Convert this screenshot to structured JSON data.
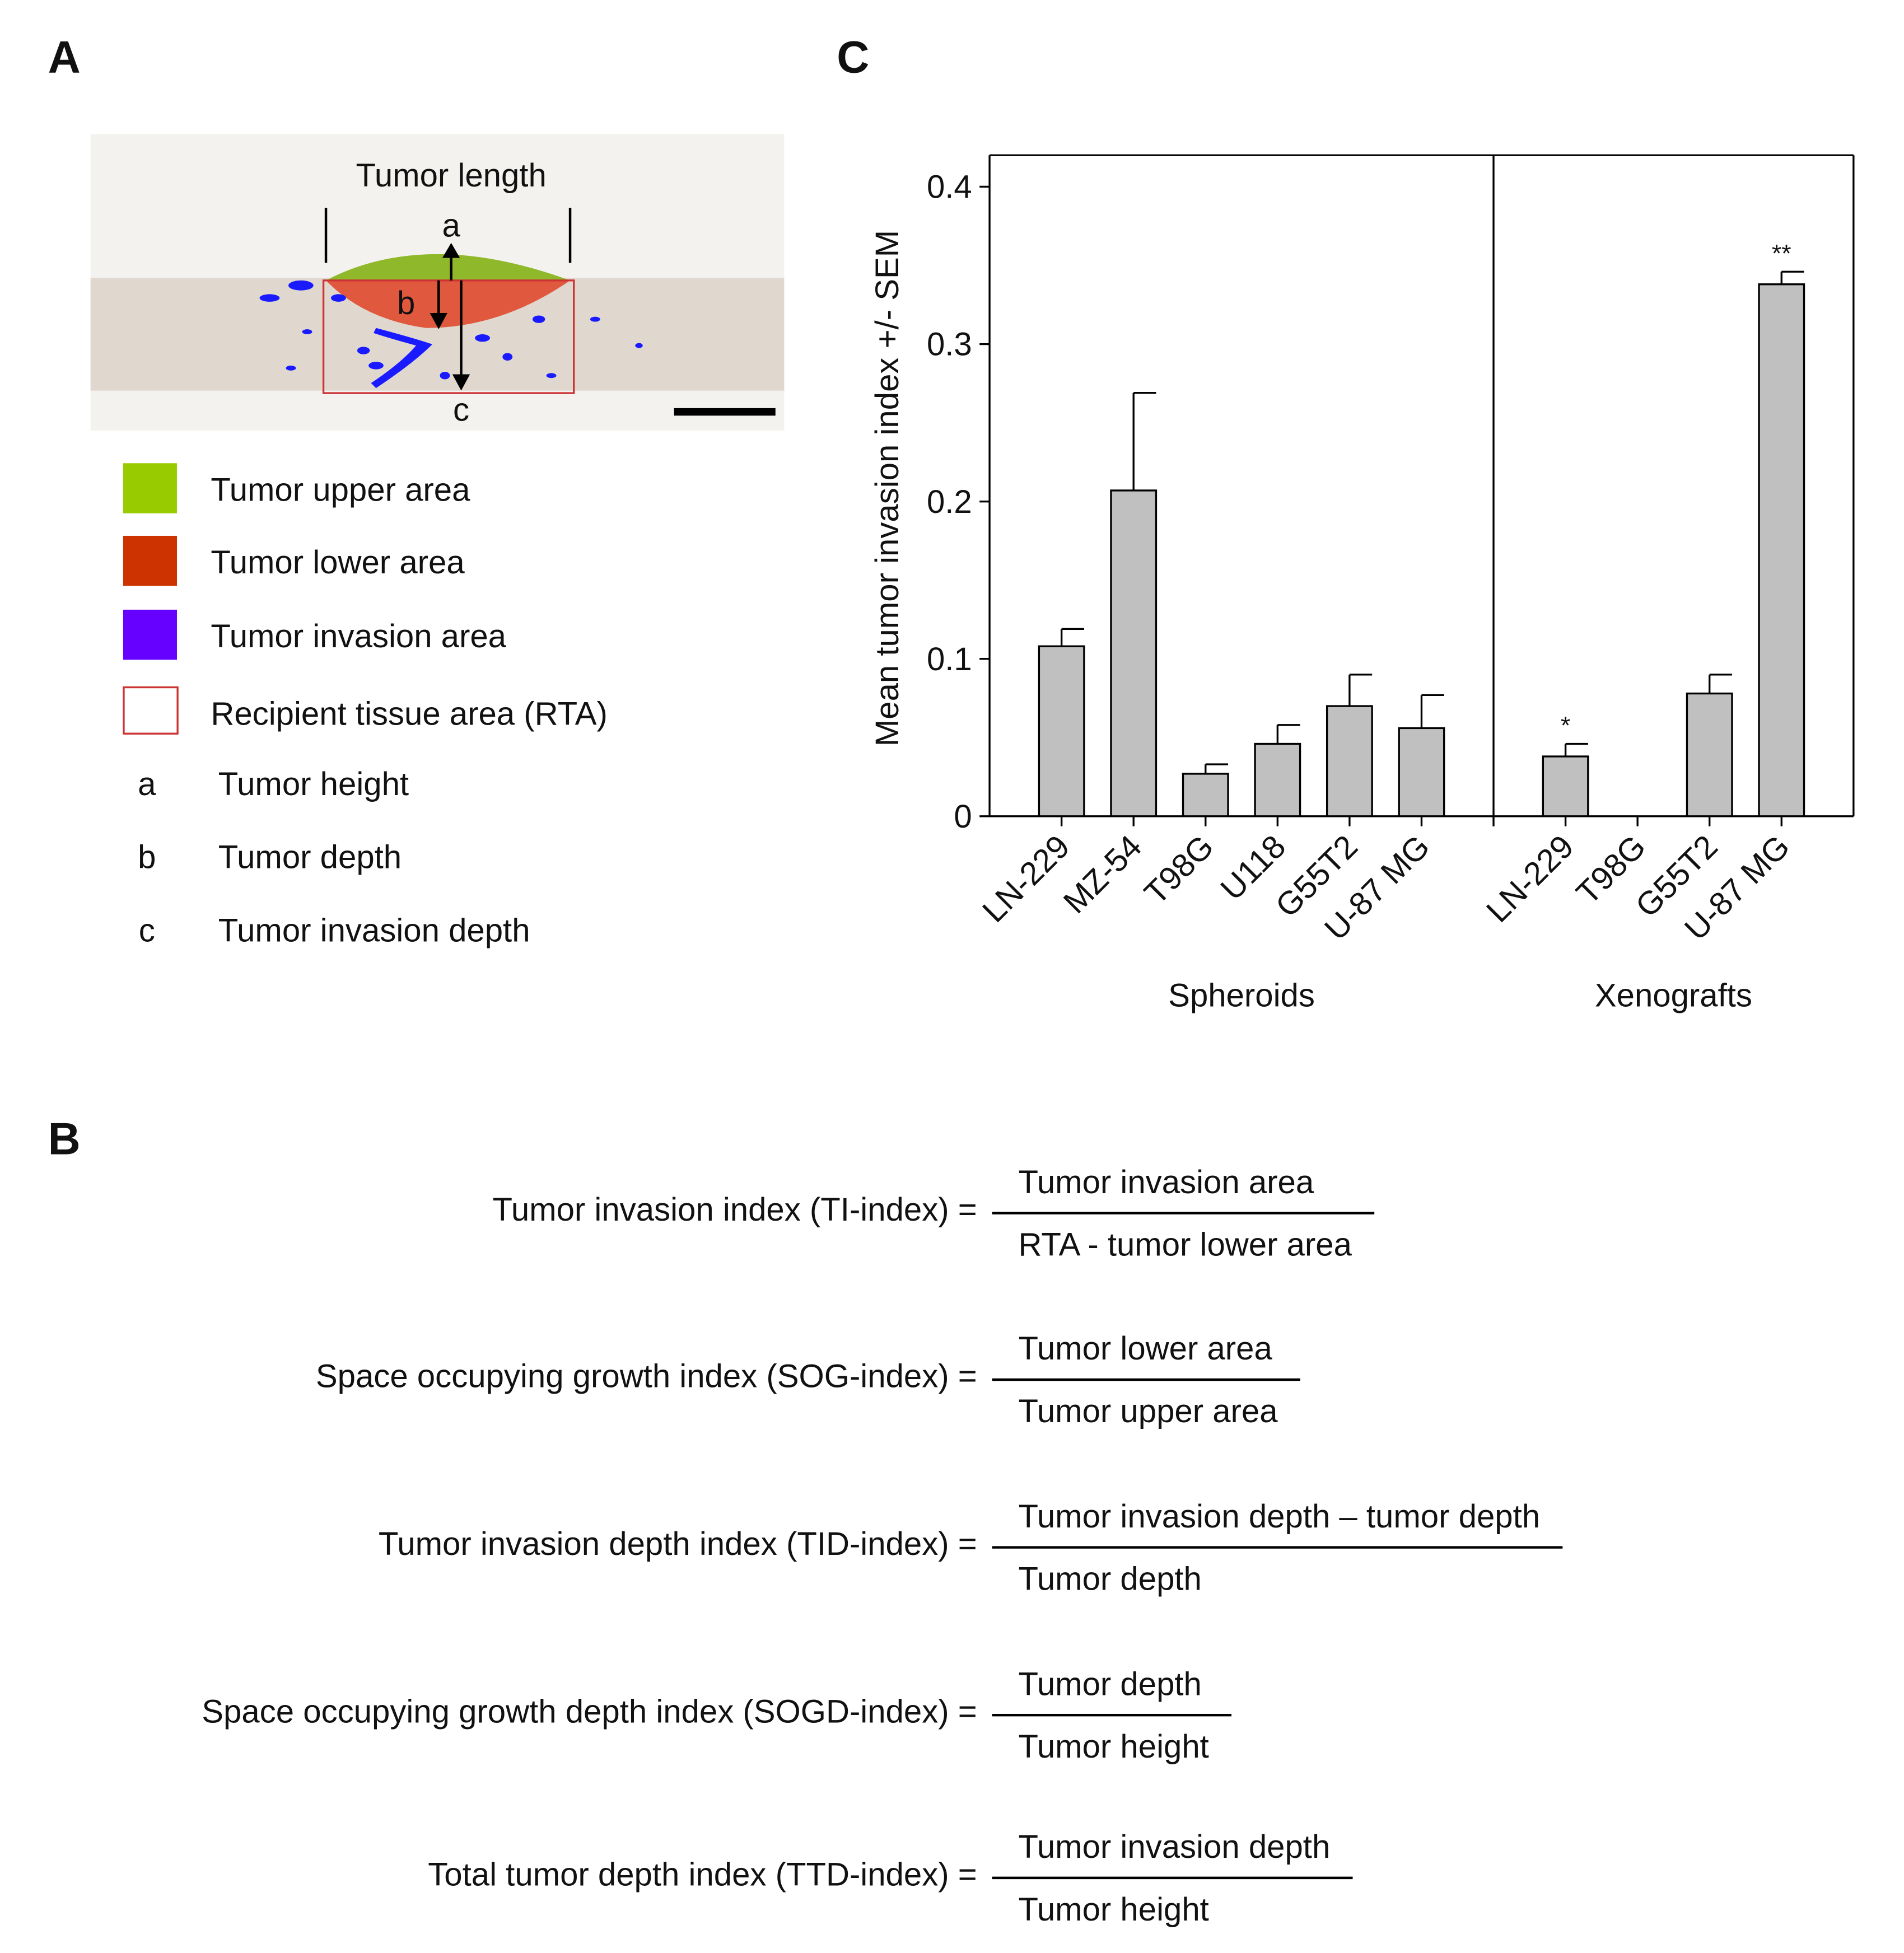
{
  "panel_labels": [
    "A",
    "C",
    "B"
  ],
  "diagram": {
    "title": "Tumor length",
    "markers": [
      "a",
      "b",
      "c"
    ],
    "legend": [
      {
        "label": "Tumor upper area",
        "color": "#99cc00"
      },
      {
        "label": "Tumor lower area",
        "color": "#cc3300"
      },
      {
        "label": "Tumor invasion area",
        "color": "#6600ff"
      },
      {
        "label": "Recipient tissue area (RTA)",
        "border_color": "#cc3333"
      }
    ],
    "definitions": [
      {
        "key": "a",
        "text": "Tumor height"
      },
      {
        "key": "b",
        "text": "Tumor depth"
      },
      {
        "key": "c",
        "text": "Tumor invasion depth"
      }
    ]
  },
  "chart_data": {
    "type": "bar",
    "y_label": "Mean tumor invasion index +/- SEM",
    "categories": [
      "LN-229",
      "MZ-54",
      "T98G",
      "U118",
      "G55T2",
      "U-87 MG",
      "LN-229",
      "T98G",
      "G55T2",
      "U-87 MG"
    ],
    "groups": [
      {
        "name": "Spheroids",
        "count": 6
      },
      {
        "name": "Xenografts",
        "count": 4
      }
    ],
    "values": [
      0.108,
      0.207,
      0.027,
      0.046,
      0.07,
      0.056,
      0.038,
      null,
      0.078,
      0.338
    ],
    "errors": [
      0.011,
      0.062,
      0.006,
      0.012,
      0.02,
      0.021,
      0.008,
      null,
      0.012,
      0.008
    ],
    "annotations": [
      null,
      null,
      null,
      null,
      null,
      null,
      "*",
      null,
      null,
      "**"
    ],
    "color": "#c0c0c0",
    "ylim": [
      0,
      0.42
    ],
    "yticks": [
      0,
      0.1,
      0.2,
      0.3,
      0.4
    ]
  },
  "formulas": [
    {
      "name": "Tumor invasion index (TI-index) =",
      "numerator": "Tumor invasion area",
      "denominator": "RTA - tumor lower area"
    },
    {
      "name": "Space occupying growth index (SOG-index) =",
      "numerator": "Tumor lower area",
      "denominator": "Tumor upper area"
    },
    {
      "name": "Tumor invasion depth index (TID-index) =",
      "numerator": "Tumor invasion depth – tumor depth",
      "denominator": "Tumor depth"
    },
    {
      "name": "Space occupying growth depth index (SOGD-index) =",
      "numerator": "Tumor depth",
      "denominator": "Tumor height"
    },
    {
      "name": "Total tumor depth index (TTD-index) =",
      "numerator": "Tumor invasion depth",
      "denominator": "Tumor height"
    }
  ]
}
